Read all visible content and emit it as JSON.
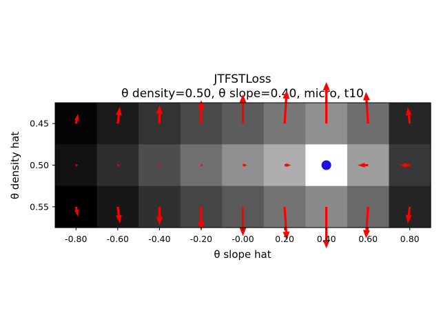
{
  "chart_data": {
    "type": "heatmap",
    "title_line1": "JTFSTLoss",
    "title_line2": "θ density=0.50, θ slope=0.40, micro, t10",
    "xlabel": "θ slope hat",
    "ylabel": "θ density hat",
    "x_values": [
      -0.8,
      -0.6,
      -0.4,
      -0.2,
      0.0,
      0.2,
      0.4,
      0.6,
      0.8
    ],
    "x_tick_labels": [
      "-0.80",
      "-0.60",
      "-0.40",
      "-0.20",
      "-0.00",
      "0.20",
      "0.40",
      "0.60",
      "0.80"
    ],
    "y_values": [
      0.45,
      0.5,
      0.55
    ],
    "y_tick_labels": [
      "0.45",
      "0.50",
      "0.55"
    ],
    "colormap": "gray",
    "intensity": [
      [
        0.02,
        0.1,
        0.2,
        0.29,
        0.36,
        0.47,
        0.56,
        0.43,
        0.15
      ],
      [
        0.07,
        0.18,
        0.3,
        0.44,
        0.56,
        0.68,
        1.0,
        0.62,
        0.22
      ],
      [
        0.0,
        0.09,
        0.19,
        0.27,
        0.35,
        0.45,
        0.54,
        0.41,
        0.14
      ]
    ],
    "gradient_dx": [
      [
        0.01,
        0.01,
        0.0,
        0.0,
        0.0,
        0.01,
        0.0,
        -0.01,
        -0.01
      ],
      [
        0.01,
        0.01,
        0.01,
        0.01,
        0.02,
        0.03,
        0.0,
        -0.05,
        -0.05
      ],
      [
        0.01,
        0.01,
        0.0,
        0.0,
        0.0,
        0.01,
        0.0,
        -0.01,
        -0.01
      ]
    ],
    "gradient_dy": [
      [
        -0.012,
        -0.02,
        -0.022,
        -0.028,
        -0.035,
        -0.04,
        -0.05,
        -0.038,
        -0.02
      ],
      [
        0.0,
        0.0,
        0.0,
        0.0,
        0.0,
        0.0,
        0.0,
        0.0,
        0.0
      ],
      [
        0.012,
        0.02,
        0.022,
        0.028,
        0.035,
        0.04,
        0.05,
        0.038,
        0.02
      ]
    ],
    "arrow_color": "#ff0000",
    "target_point": {
      "x": 0.4,
      "y": 0.5,
      "color": "#1a10e6"
    }
  }
}
